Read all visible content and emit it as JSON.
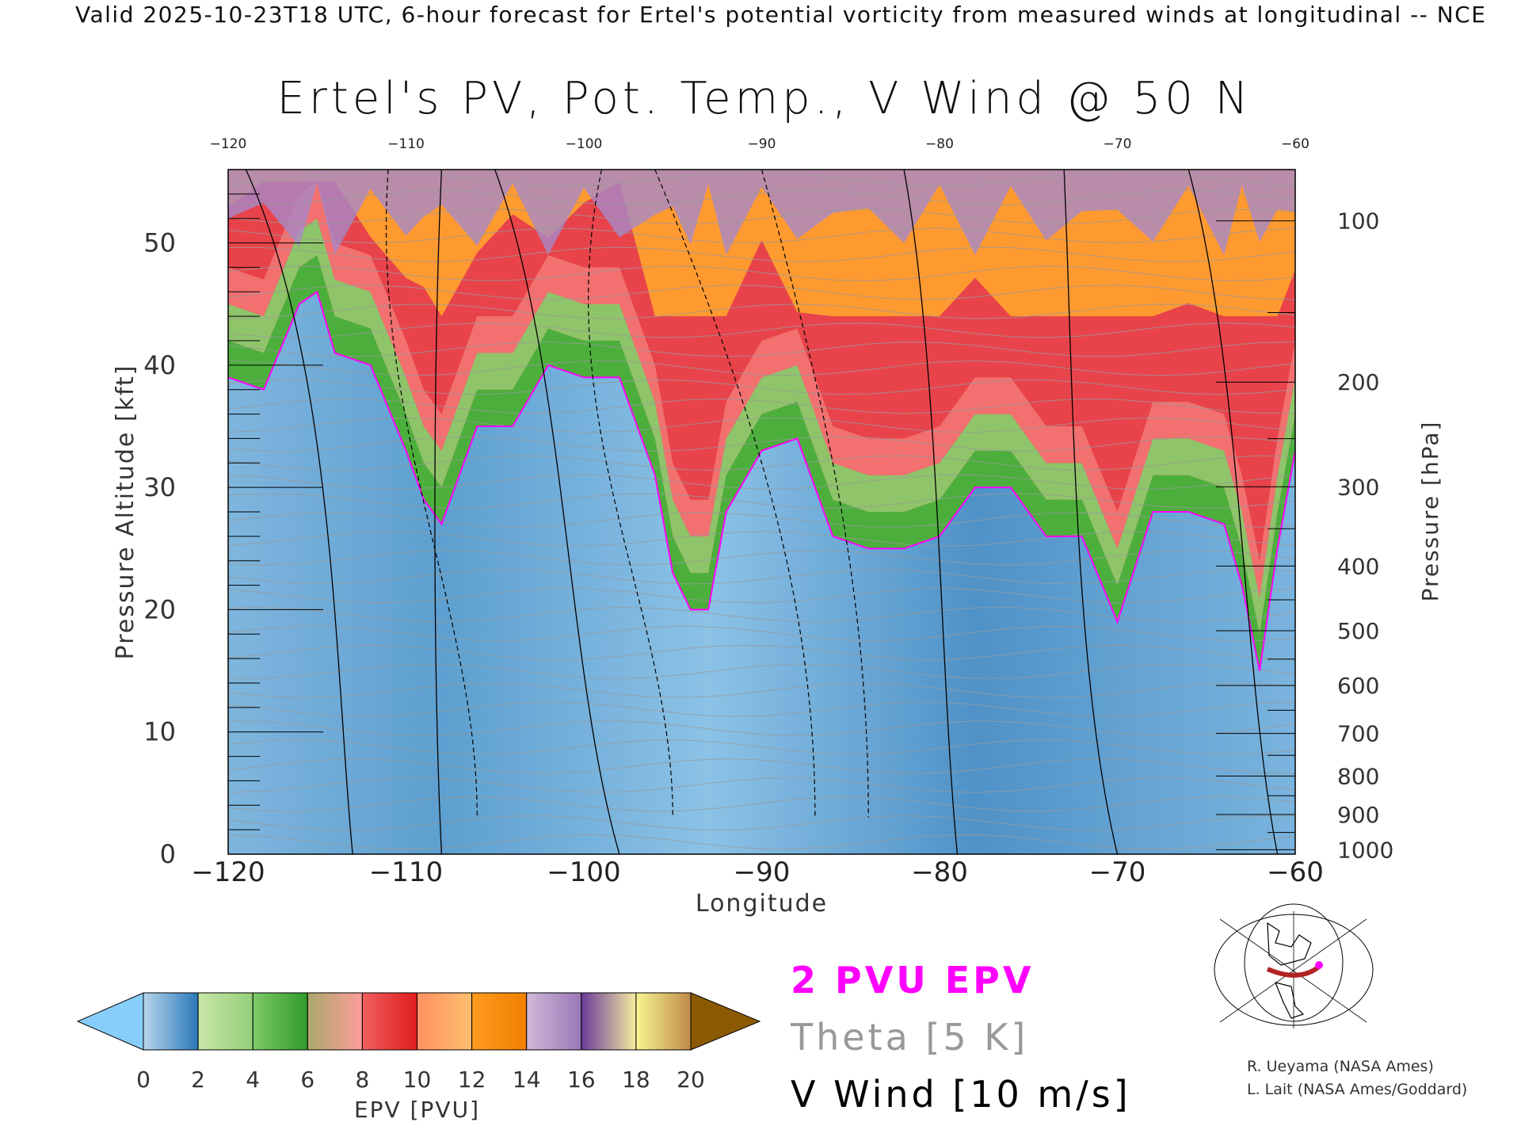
{
  "header": {
    "topline": "Valid 2025-10-23T18 UTC, 6-hour forecast for Ertel's potential vorticity from measured winds at longitudinal -- NCE",
    "title": "Ertel's PV, Pot. Temp., V Wind @ 50 N"
  },
  "legend": {
    "epv_contour": "2 PVU EPV",
    "theta": "Theta [5 K]",
    "vwind": "V Wind [10 m/s]"
  },
  "credits": [
    "R. Ueyama (NASA Ames)",
    "L. Lait (NASA Ames/Goddard)"
  ],
  "colors": {
    "epv_contour": "#ff00ff",
    "theta": "#999999",
    "vwind": "#000000",
    "map_track": "#b22222"
  },
  "chart_data": {
    "type": "heatmap",
    "title": "Ertel's PV, Pot. Temp., V Wind @ 50 N",
    "xlabel": "Longitude",
    "ylabel": "Pressure Altitude [kft]",
    "y2label": "Pressure [hPa]",
    "xlim": [
      -120,
      -60
    ],
    "ylim": [
      0,
      56
    ],
    "xticks": [
      -120,
      -110,
      -100,
      -90,
      -80,
      -70,
      -60
    ],
    "xtick_labels": [
      "−120",
      "−110",
      "−100",
      "−90",
      "−80",
      "−70",
      "−60"
    ],
    "yticks": [
      0,
      10,
      20,
      30,
      40,
      50
    ],
    "pressure_ticks": [
      100,
      200,
      300,
      400,
      500,
      600,
      700,
      800,
      900,
      1000
    ],
    "tropopause_2pvu": {
      "lon": [
        -120,
        -118,
        -116,
        -115,
        -114,
        -112,
        -110,
        -109,
        -108,
        -106,
        -104,
        -102,
        -100,
        -98,
        -96,
        -95,
        -94,
        -93,
        -92,
        -90,
        -88,
        -86,
        -84,
        -82,
        -80,
        -78,
        -76,
        -74,
        -72,
        -70,
        -68,
        -66,
        -64,
        -63,
        -62,
        -61,
        -60
      ],
      "kft": [
        39,
        38,
        45,
        46,
        41,
        40,
        33,
        29,
        27,
        35,
        35,
        40,
        39,
        39,
        31,
        23,
        20,
        20,
        28,
        33,
        34,
        26,
        25,
        25,
        26,
        30,
        30,
        26,
        26,
        19,
        28,
        28,
        27,
        22,
        15,
        25,
        33
      ]
    },
    "colorbar": {
      "label": "EPV [PVU]",
      "ticks": [
        0,
        2,
        4,
        6,
        8,
        10,
        12,
        14,
        16,
        18,
        20
      ],
      "segments": [
        [
          "#b7d6ec",
          "#2a78b8"
        ],
        [
          "#c8e6a8",
          "#93cf7a"
        ],
        [
          "#7fc96a",
          "#2f9a2a"
        ],
        [
          "#a9a86a",
          "#ff9c9c"
        ],
        [
          "#f06060",
          "#e01c1c"
        ],
        [
          "#ff9060",
          "#ffc070"
        ],
        [
          "#ff9a20",
          "#f08000"
        ],
        [
          "#d0b8d8",
          "#9a78b8"
        ],
        [
          "#6a3a9a",
          "#f4eca0"
        ],
        [
          "#f8f490",
          "#c08a4a"
        ]
      ],
      "under": "#87cefa",
      "over": "#8b5a00"
    }
  }
}
